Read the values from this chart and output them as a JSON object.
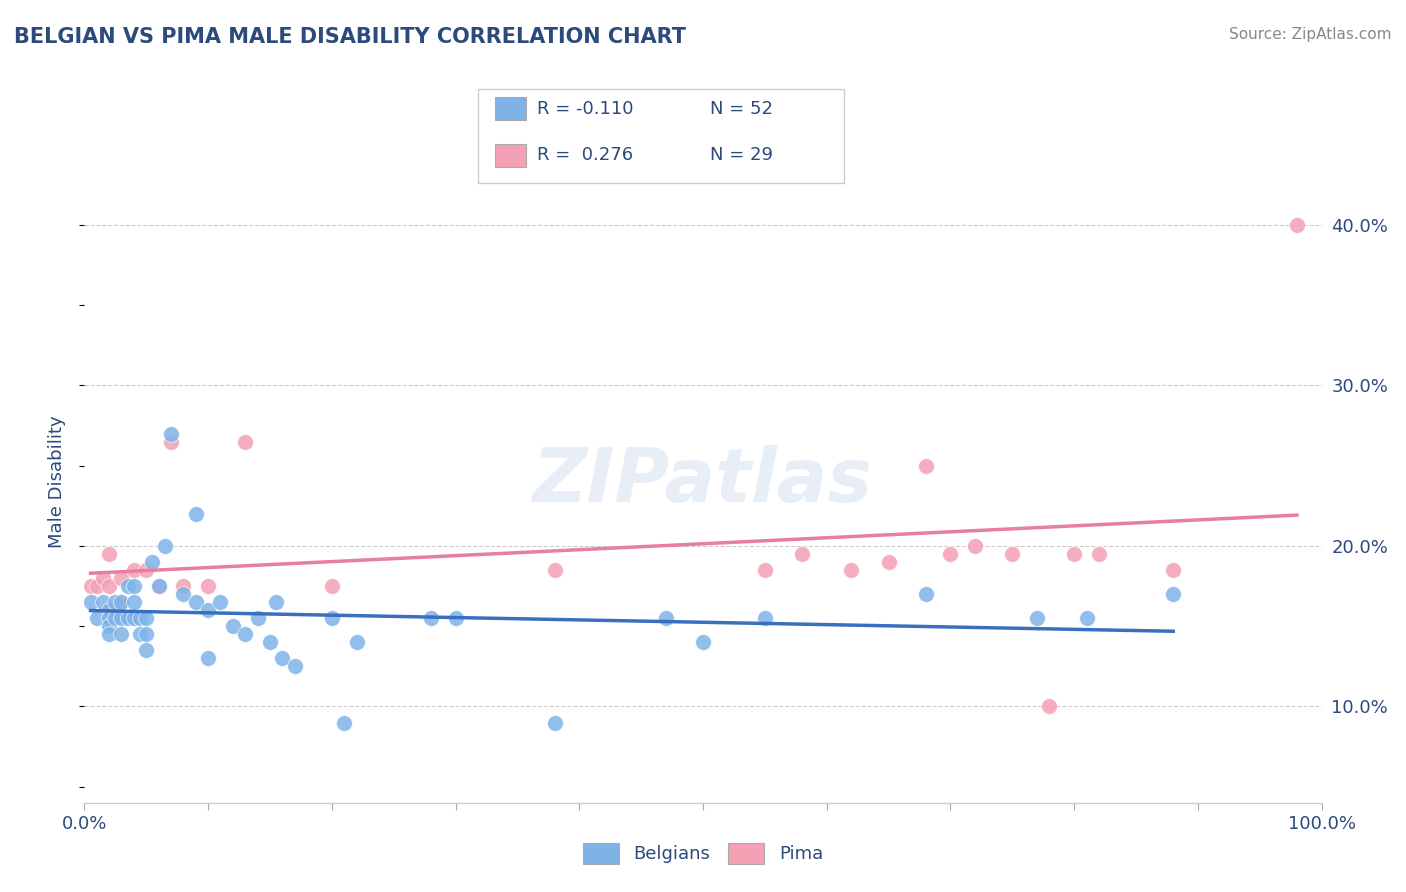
{
  "title": "BELGIAN VS PIMA MALE DISABILITY CORRELATION CHART",
  "source": "Source: ZipAtlas.com",
  "ylabel": "Male Disability",
  "xlim": [
    0.0,
    1.0
  ],
  "ylim": [
    0.04,
    0.44
  ],
  "yticks": [
    0.1,
    0.2,
    0.3,
    0.4
  ],
  "ytick_labels": [
    "10.0%",
    "20.0%",
    "30.0%",
    "40.0%"
  ],
  "xticks": [
    0.0,
    0.1,
    0.2,
    0.3,
    0.4,
    0.5,
    0.6,
    0.7,
    0.8,
    0.9,
    1.0
  ],
  "xtick_labels": [
    "0.0%",
    "",
    "",
    "",
    "",
    "",
    "",
    "",
    "",
    "",
    "100.0%"
  ],
  "belgians_color": "#7fb3e8",
  "pima_color": "#f4a0b5",
  "belgians_line_color": "#3a6fbd",
  "pima_line_color": "#e87fa0",
  "R_belgians": -0.11,
  "N_belgians": 52,
  "R_pima": 0.276,
  "N_pima": 29,
  "watermark": "ZIPatlas",
  "belgians_x": [
    0.005,
    0.01,
    0.015,
    0.02,
    0.02,
    0.02,
    0.02,
    0.025,
    0.025,
    0.03,
    0.03,
    0.03,
    0.035,
    0.035,
    0.04,
    0.04,
    0.04,
    0.045,
    0.045,
    0.05,
    0.05,
    0.05,
    0.055,
    0.06,
    0.065,
    0.07,
    0.08,
    0.09,
    0.09,
    0.1,
    0.1,
    0.11,
    0.12,
    0.13,
    0.14,
    0.15,
    0.155,
    0.16,
    0.17,
    0.2,
    0.21,
    0.22,
    0.28,
    0.3,
    0.38,
    0.47,
    0.5,
    0.55,
    0.68,
    0.77,
    0.81,
    0.88
  ],
  "belgians_y": [
    0.165,
    0.155,
    0.165,
    0.16,
    0.155,
    0.15,
    0.145,
    0.165,
    0.155,
    0.165,
    0.155,
    0.145,
    0.175,
    0.155,
    0.175,
    0.165,
    0.155,
    0.155,
    0.145,
    0.155,
    0.145,
    0.135,
    0.19,
    0.175,
    0.2,
    0.27,
    0.17,
    0.22,
    0.165,
    0.16,
    0.13,
    0.165,
    0.15,
    0.145,
    0.155,
    0.14,
    0.165,
    0.13,
    0.125,
    0.155,
    0.09,
    0.14,
    0.155,
    0.155,
    0.09,
    0.155,
    0.14,
    0.155,
    0.17,
    0.155,
    0.155,
    0.17
  ],
  "pima_x": [
    0.005,
    0.01,
    0.015,
    0.02,
    0.02,
    0.03,
    0.03,
    0.04,
    0.05,
    0.06,
    0.07,
    0.08,
    0.1,
    0.13,
    0.2,
    0.38,
    0.55,
    0.58,
    0.62,
    0.65,
    0.68,
    0.7,
    0.72,
    0.75,
    0.78,
    0.8,
    0.82,
    0.88,
    0.98
  ],
  "pima_y": [
    0.175,
    0.175,
    0.18,
    0.195,
    0.175,
    0.18,
    0.165,
    0.185,
    0.185,
    0.175,
    0.265,
    0.175,
    0.175,
    0.265,
    0.175,
    0.185,
    0.185,
    0.195,
    0.185,
    0.19,
    0.25,
    0.195,
    0.2,
    0.195,
    0.1,
    0.195,
    0.195,
    0.185,
    0.4
  ],
  "background_color": "#ffffff",
  "grid_color": "#cccccc",
  "title_color": "#2c4a7c",
  "axis_color": "#2c4a7c",
  "legend_bg": "#ffffff",
  "legend_border": "#cccccc"
}
